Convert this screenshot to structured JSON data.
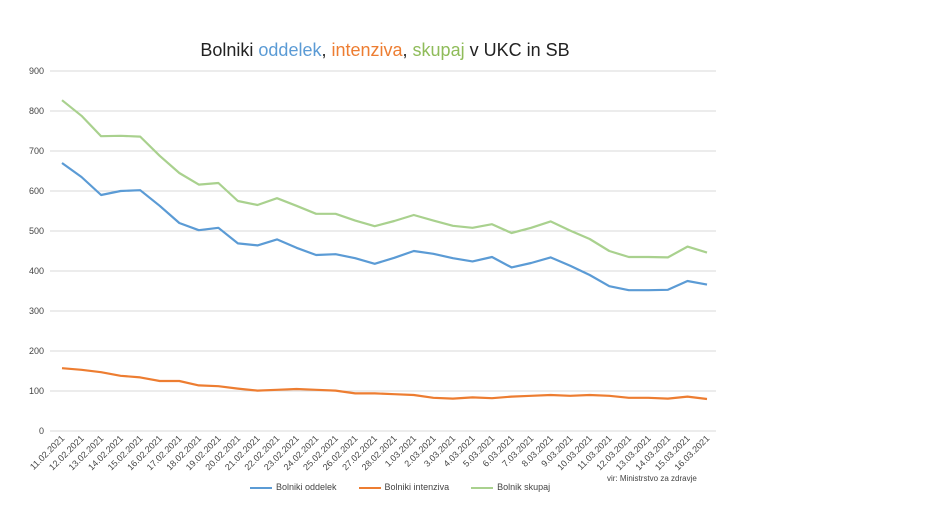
{
  "chart_data": {
    "type": "line",
    "title_parts": [
      {
        "text": "Bolniki ",
        "color": "#222222"
      },
      {
        "text": "oddelek",
        "color": "#5b9bd5"
      },
      {
        "text": ", ",
        "color": "#222222"
      },
      {
        "text": "intenziva",
        "color": "#ed7d31"
      },
      {
        "text": ", ",
        "color": "#222222"
      },
      {
        "text": "skupaj",
        "color": "#8fbc5a"
      },
      {
        "text": " v UKC  in SB",
        "color": "#222222"
      }
    ],
    "x": [
      "11.02.2021",
      "12.02.2021",
      "13.02.2021",
      "14.02.2021",
      "15.02.2021",
      "16.02.2021",
      "17.02.2021",
      "18.02.2021",
      "19.02.2021",
      "20.02.2021",
      "21.02.2021",
      "22.02.2021",
      "23.02.2021",
      "24.02.2021",
      "25.02.2021",
      "26.02.2021",
      "27.02.2021",
      "28.02.2021",
      "1.03.2021",
      "2.03.2021",
      "3.03.2021",
      "4.03.2021",
      "5.03.2021",
      "6.03.2021",
      "7.03.2021",
      "8.03.2021",
      "9.03.2021",
      "10.03.2021",
      "11.03.2021",
      "12.03.2021",
      "13.03.2021",
      "14.03.2021",
      "15.03.2021",
      "16.03.2021"
    ],
    "series": [
      {
        "name": "Bolniki oddelek",
        "color": "#5b9bd5",
        "values": [
          670,
          635,
          590,
          600,
          602,
          563,
          520,
          502,
          508,
          469,
          464,
          479,
          458,
          440,
          442,
          432,
          418,
          433,
          450,
          443,
          432,
          424,
          435,
          409,
          420,
          434,
          413,
          390,
          362,
          352,
          352,
          353,
          375,
          366
        ]
      },
      {
        "name": "Bolniki intenziva",
        "color": "#ed7d31",
        "values": [
          157,
          153,
          147,
          138,
          134,
          125,
          125,
          114,
          112,
          106,
          101,
          103,
          105,
          103,
          101,
          94,
          94,
          92,
          90,
          83,
          81,
          84,
          82,
          86,
          88,
          90,
          88,
          90,
          88,
          83,
          83,
          81,
          86,
          80
        ]
      },
      {
        "name": "Bolnik skupaj",
        "color": "#a9d18e",
        "values": [
          827,
          788,
          737,
          738,
          736,
          688,
          645,
          616,
          620,
          575,
          565,
          582,
          563,
          543,
          543,
          526,
          512,
          525,
          540,
          526,
          513,
          508,
          517,
          495,
          508,
          524,
          501,
          480,
          450,
          435,
          435,
          434,
          461,
          446
        ]
      }
    ],
    "y_ticks": [
      0,
      100,
      200,
      300,
      400,
      500,
      600,
      700,
      800,
      900
    ],
    "ylim": [
      0,
      900
    ],
    "grid": true,
    "legend_position": "bottom",
    "source_note": "vir: Ministrstvo za zdravje"
  }
}
